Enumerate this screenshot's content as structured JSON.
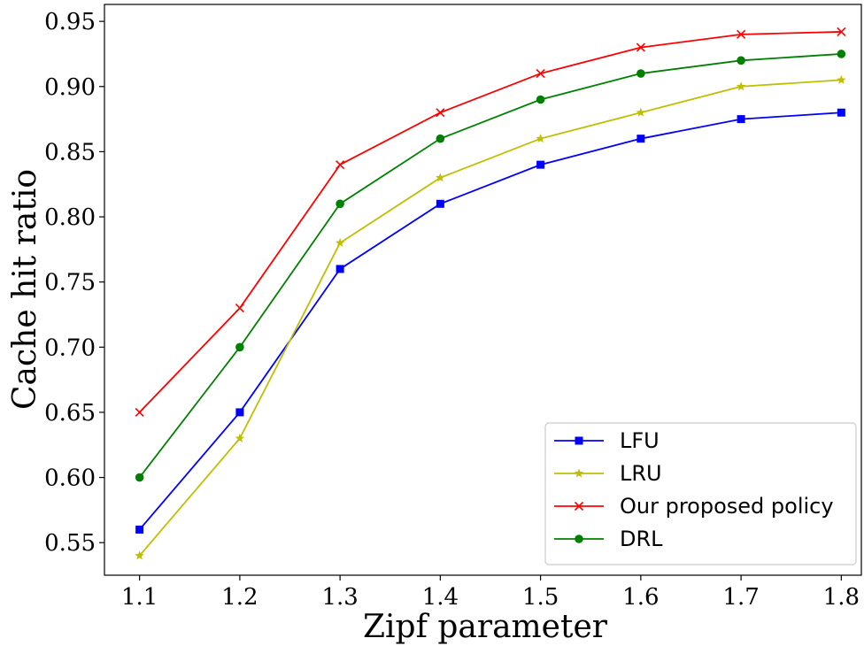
{
  "chart_data": {
    "type": "line",
    "xlabel": "Zipf parameter",
    "ylabel": "Cache hit ratio",
    "x": [
      1.1,
      1.2,
      1.3,
      1.4,
      1.5,
      1.6,
      1.7,
      1.8
    ],
    "x_tick_labels": [
      "1.1",
      "1.2",
      "1.3",
      "1.4",
      "1.5",
      "1.6",
      "1.7",
      "1.8"
    ],
    "y_ticks": [
      0.55,
      0.6,
      0.65,
      0.7,
      0.75,
      0.8,
      0.85,
      0.9,
      0.95
    ],
    "y_tick_labels": [
      "0.55",
      "0.60",
      "0.65",
      "0.70",
      "0.75",
      "0.80",
      "0.85",
      "0.90",
      "0.95"
    ],
    "xlim": [
      1.065,
      1.82
    ],
    "ylim": [
      0.525,
      0.963
    ],
    "grid": false,
    "legend_position": "lower-right",
    "series": [
      {
        "name": "LFU",
        "color": "#0000ff",
        "marker": "square",
        "values": [
          0.56,
          0.65,
          0.76,
          0.81,
          0.84,
          0.86,
          0.875,
          0.88
        ]
      },
      {
        "name": "LRU",
        "color": "#bfbf00",
        "marker": "star",
        "values": [
          0.54,
          0.63,
          0.78,
          0.83,
          0.86,
          0.88,
          0.9,
          0.905
        ]
      },
      {
        "name": "Our proposed policy",
        "color": "#ff0000",
        "marker": "x",
        "values": [
          0.65,
          0.73,
          0.84,
          0.88,
          0.91,
          0.93,
          0.94,
          0.942
        ]
      },
      {
        "name": "DRL",
        "color": "#008000",
        "marker": "circle",
        "values": [
          0.6,
          0.7,
          0.81,
          0.86,
          0.89,
          0.91,
          0.92,
          0.925
        ]
      }
    ]
  }
}
